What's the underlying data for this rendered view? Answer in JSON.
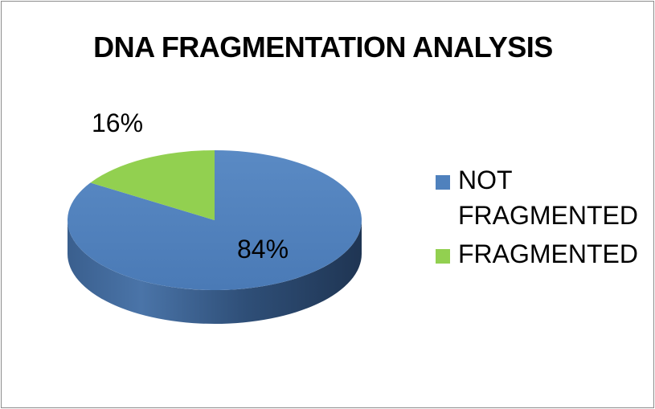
{
  "chart_data": {
    "type": "pie",
    "title": "DNA FRAGMENTATION ANALYSIS",
    "categories": [
      "NOT FRAGMENTED",
      "FRAGMENTED"
    ],
    "values": [
      84,
      16
    ],
    "value_format": "percent",
    "data_labels": [
      "84%",
      "16%"
    ],
    "colors": [
      "#4f81bd",
      "#92d050"
    ],
    "style": "3d",
    "legend_position": "right"
  },
  "legend": {
    "items": [
      {
        "label": "NOT FRAGMENTED",
        "color": "#4f81bd"
      },
      {
        "label": "FRAGMENTED",
        "color": "#92d050"
      }
    ]
  }
}
